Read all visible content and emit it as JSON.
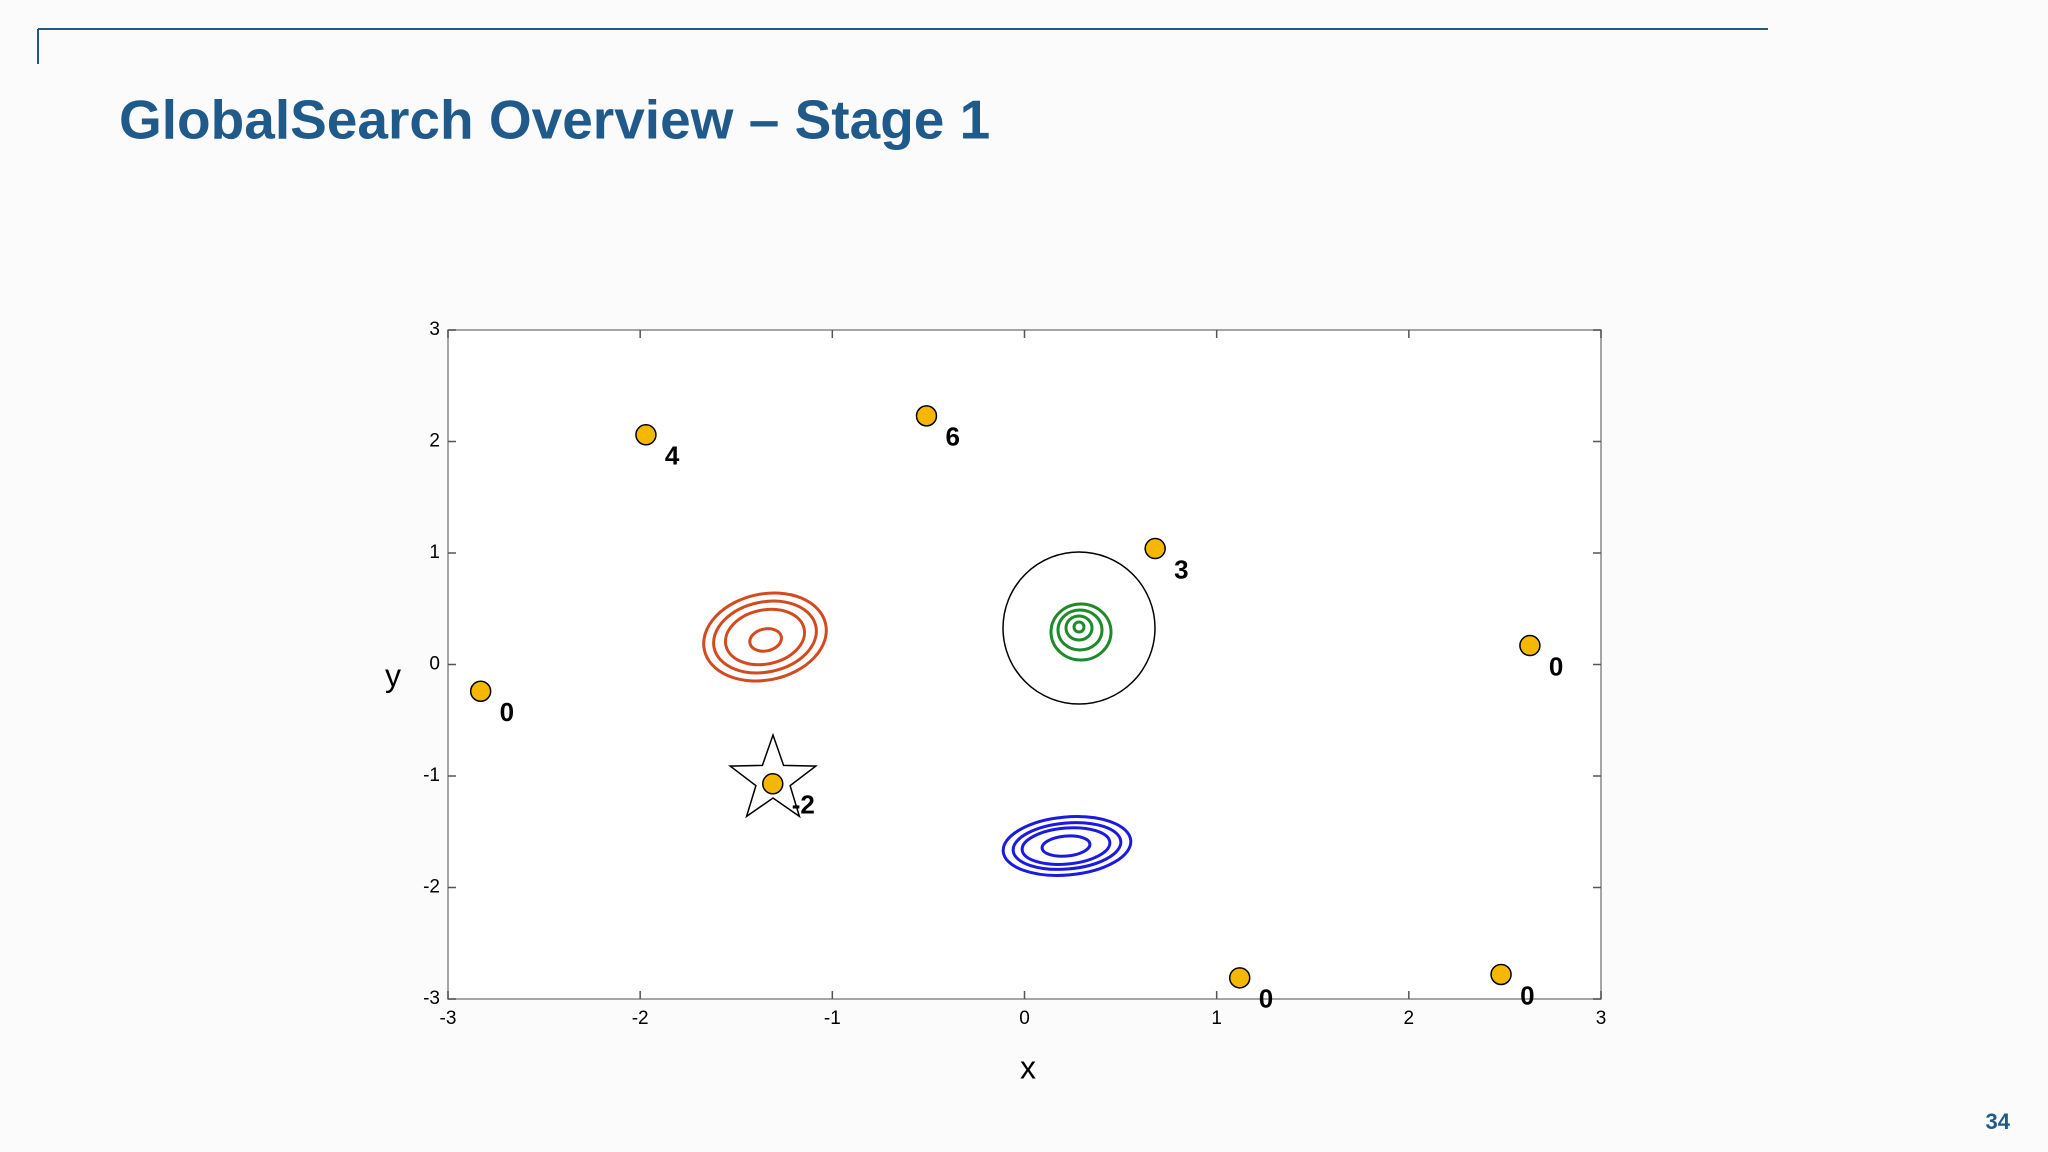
{
  "slide": {
    "title": "GlobalSearch Overview – Stage 1",
    "page_number": 34
  },
  "chart_data": {
    "type": "scatter",
    "xlabel": "x",
    "ylabel": "y",
    "x": [
      -2.83,
      -1.97,
      -1.31,
      -0.51,
      0.68,
      2.63,
      1.12,
      2.48
    ],
    "values": [
      -0.24,
      2.06,
      -1.07,
      2.23,
      1.04,
      0.17,
      -2.81,
      -2.78
    ],
    "labels": [
      0,
      4,
      -2,
      6,
      3,
      0,
      0,
      0
    ],
    "color": "#f5b800",
    "xlim": [
      -3,
      3
    ],
    "ylim": [
      -3,
      3
    ],
    "xticks": [
      -3,
      -2,
      -1,
      0,
      1,
      2,
      3
    ],
    "yticks": [
      -3,
      -2,
      -1,
      0,
      1,
      2,
      3
    ],
    "grid": false
  }
}
